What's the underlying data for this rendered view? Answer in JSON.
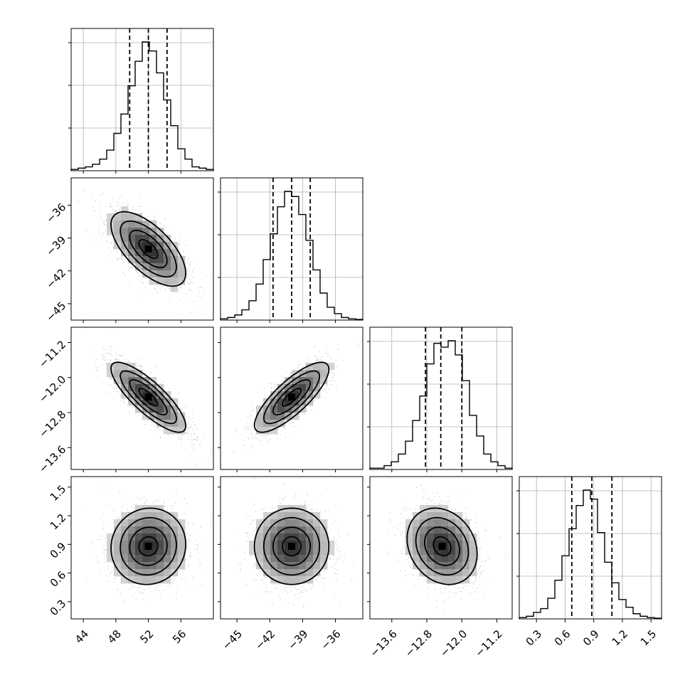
{
  "chart_data": {
    "type": "corner",
    "parameters": [
      {
        "range": [
          42.5,
          60.0
        ],
        "ticks": [
          44,
          48,
          52,
          56
        ],
        "tick_labels": [
          "44",
          "48",
          "52",
          "56"
        ],
        "quantiles": [
          49.7,
          52.0,
          54.3
        ]
      },
      {
        "range": [
          -46.5,
          -33.5
        ],
        "ticks": [
          -45,
          -42,
          -39,
          -36
        ],
        "tick_labels": [
          "−45",
          "−42",
          "−39",
          "−36"
        ],
        "quantiles": [
          -41.7,
          -40.0,
          -38.3
        ]
      },
      {
        "range": [
          -14.1,
          -10.85
        ],
        "ticks": [
          -13.6,
          -12.8,
          -12.0,
          -11.2
        ],
        "tick_labels": [
          "−13.6",
          "−12.8",
          "−12.0",
          "−11.2"
        ],
        "quantiles": [
          -12.83,
          -12.48,
          -12.0
        ]
      },
      {
        "range": [
          0.12,
          1.61
        ],
        "ticks": [
          0.3,
          0.6,
          0.9,
          1.2,
          1.5
        ],
        "tick_labels": [
          "0.3",
          "0.6",
          "0.9",
          "1.2",
          "1.5"
        ],
        "quantiles": [
          0.67,
          0.88,
          1.09
        ]
      }
    ],
    "histograms": [
      [
        1,
        2,
        3,
        5,
        9,
        16,
        29,
        44,
        66,
        85,
        100,
        93,
        76,
        55,
        35,
        17,
        9,
        3,
        2,
        1
      ],
      [
        1,
        2,
        4,
        8,
        15,
        28,
        47,
        67,
        88,
        100,
        96,
        82,
        62,
        39,
        21,
        10,
        5,
        2,
        1,
        0.5
      ],
      [
        1,
        1,
        3,
        6,
        12,
        22,
        38,
        57,
        82,
        98,
        95,
        100,
        89,
        69,
        42,
        26,
        12,
        6,
        3,
        1
      ],
      [
        1,
        2,
        5,
        8,
        16,
        30,
        49,
        70,
        88,
        100,
        93,
        67,
        44,
        28,
        15,
        9,
        4,
        2,
        1,
        0.5
      ]
    ],
    "pairs": [
      {
        "x": 0,
        "y": 1,
        "mean": [
          52.0,
          -40.0
        ],
        "sd": [
          2.3,
          1.7
        ],
        "rho": -0.65
      },
      {
        "x": 0,
        "y": 2,
        "mean": [
          52.0,
          -12.45
        ],
        "sd": [
          2.3,
          0.4
        ],
        "rho": -0.82
      },
      {
        "x": 1,
        "y": 2,
        "mean": [
          -40.0,
          -12.45
        ],
        "sd": [
          1.7,
          0.4
        ],
        "rho": 0.8
      },
      {
        "x": 0,
        "y": 3,
        "mean": [
          52.0,
          0.88
        ],
        "sd": [
          2.3,
          0.2
        ],
        "rho": 0.05
      },
      {
        "x": 1,
        "y": 3,
        "mean": [
          -40.0,
          0.88
        ],
        "sd": [
          1.7,
          0.2
        ],
        "rho": 0.0
      },
      {
        "x": 2,
        "y": 3,
        "mean": [
          -12.45,
          0.88
        ],
        "sd": [
          0.4,
          0.2
        ],
        "rho": -0.2
      }
    ],
    "contour_levels_sigma": [
      0.5,
      1.0,
      1.5,
      2.0
    ],
    "grid": true,
    "colors": {
      "points": "#b5b5b5",
      "density": "#000000",
      "contour": "#000000",
      "grid": "#b0b0b0"
    }
  }
}
